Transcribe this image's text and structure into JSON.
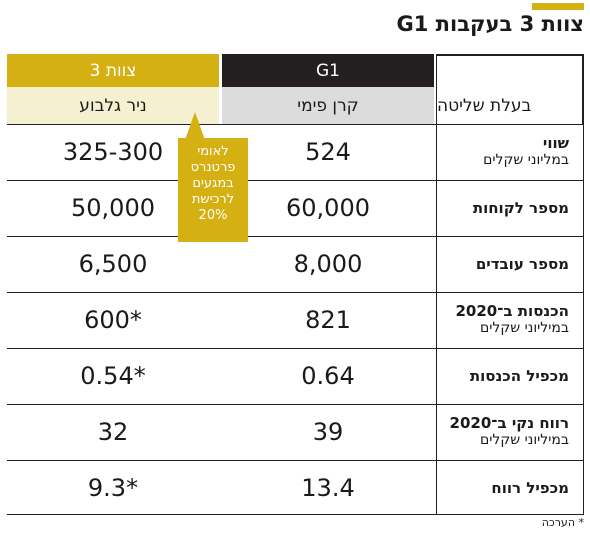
{
  "title": "צוות 3 בעקבות G1",
  "colors": {
    "accent": "#d4b012",
    "dark": "#231f20",
    "g1_sub_bg": "#dcdcdc",
    "t3_sub_bg": "#f5f0cf"
  },
  "header": {
    "g1": "G1",
    "team3": "צוות 3"
  },
  "subheader": {
    "owner_label": "בעלת שליטה",
    "g1_owner": "קרן פימי",
    "team3_owner": "ניר גלבוע"
  },
  "callout": [
    "לאומי",
    "פרטנרס",
    "במגעים",
    "לרכישת",
    "20%"
  ],
  "footnote": "* הערכה",
  "chart_data": {
    "type": "table",
    "title": "צוות 3 בעקבות G1",
    "columns": [
      "G1",
      "צוות 3"
    ],
    "rows": [
      {
        "label": "שווי",
        "sublabel": "במליוני שקלים",
        "g1": "524",
        "team3": "325-300"
      },
      {
        "label": "מספר לקוחות",
        "sublabel": "",
        "g1": "60,000",
        "team3": "50,000"
      },
      {
        "label": "מספר עובדים",
        "sublabel": "",
        "g1": "8,000",
        "team3": "6,500"
      },
      {
        "label": "הכנסות ב־2020",
        "sublabel": "במיליוני שקלים",
        "g1": "821",
        "team3": "600*"
      },
      {
        "label": "מכפיל הכנסות",
        "sublabel": "",
        "g1": "0.64",
        "team3": "0.54*"
      },
      {
        "label": "רווח נקי ב־2020",
        "sublabel": "במיליוני שקלים",
        "g1": "39",
        "team3": "32"
      },
      {
        "label": "מכפיל רווח",
        "sublabel": "",
        "g1": "13.4",
        "team3": "9.3*"
      }
    ]
  }
}
